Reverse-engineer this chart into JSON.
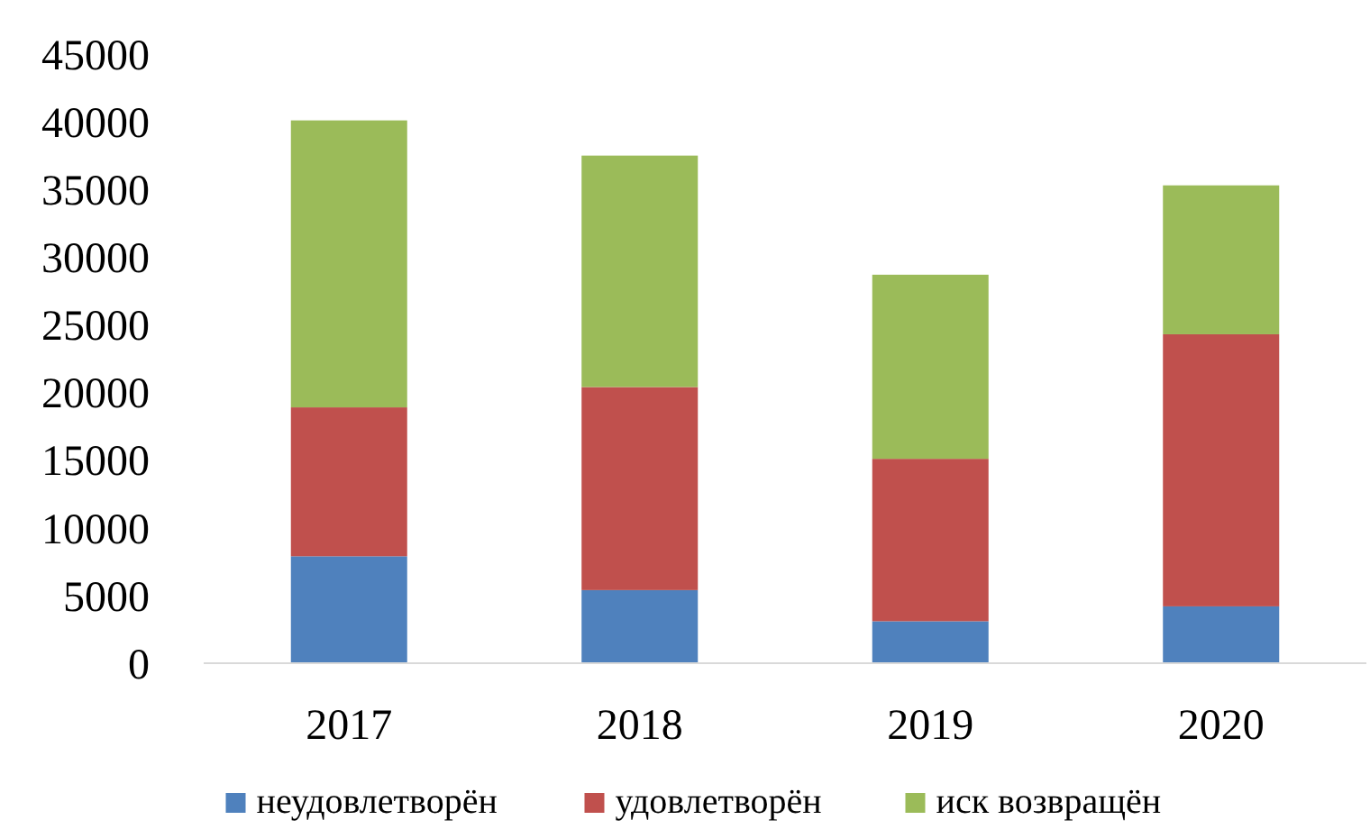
{
  "chart_data": {
    "type": "bar",
    "stacked": true,
    "categories": [
      "2017",
      "2018",
      "2019",
      "2020"
    ],
    "series": [
      {
        "name": "неудовлетворён",
        "color": "#4f81bd",
        "values": [
          7900,
          5400,
          3100,
          4200
        ]
      },
      {
        "name": "удовлетворён",
        "color": "#c0504d",
        "values": [
          11000,
          15000,
          12000,
          20100
        ]
      },
      {
        "name": "иск возвращён",
        "color": "#9bbb59",
        "values": [
          21200,
          17100,
          13600,
          11000
        ]
      }
    ],
    "ylim": [
      0,
      45000
    ],
    "yticks": [
      0,
      5000,
      10000,
      15000,
      20000,
      25000,
      30000,
      35000,
      40000,
      45000
    ],
    "grid": false,
    "legend": "bottom"
  }
}
